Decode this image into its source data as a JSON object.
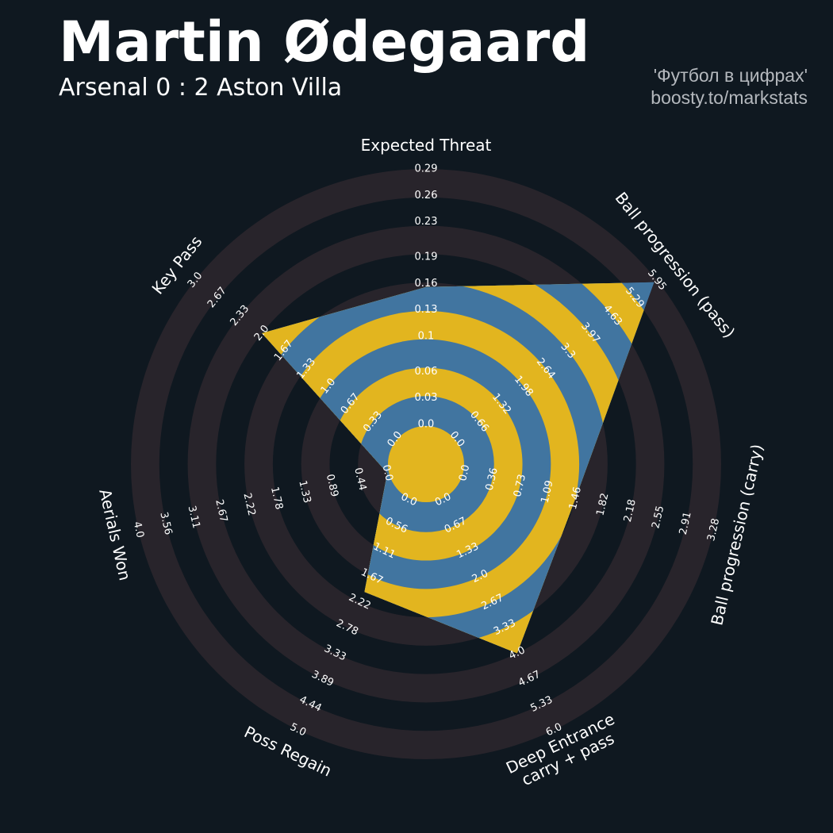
{
  "chart_data": {
    "type": "radar",
    "title": "Martin Ødegaard",
    "subtitle": "Arsenal 0 : 2 Aston Villa",
    "credits": [
      "'Футбол в цифрах'",
      "boosty.to/markstats"
    ],
    "params": [
      "Expected Threat",
      "Ball progression (pass)",
      "Ball progression (carry)",
      "Deep Entrance\ncarry + pass",
      "Poss Regain",
      "Aerials Won",
      "Key Pass"
    ],
    "values": [
      0.156,
      5.87,
      1.46,
      4,
      2,
      0,
      2
    ],
    "ranges": [
      [
        0,
        0.29
      ],
      [
        0,
        5.95
      ],
      [
        0,
        3.28
      ],
      [
        0,
        6
      ],
      [
        0,
        5
      ],
      [
        0,
        4
      ],
      [
        0,
        3
      ]
    ],
    "ticks": [
      [
        {
          "value": 0,
          "label": "0.0"
        },
        0.03,
        0.06,
        0.1,
        0.13,
        0.16,
        0.19,
        0.23,
        0.26,
        0.29
      ],
      [
        {
          "value": 0,
          "label": "0.0"
        },
        0.66,
        1.32,
        1.98,
        2.64,
        3.3,
        3.97,
        4.63,
        5.29,
        5.95
      ],
      [
        {
          "value": 0,
          "label": "0.0"
        },
        0.36,
        0.73,
        1.09,
        1.46,
        1.82,
        2.18,
        2.55,
        2.91,
        3.28
      ],
      [
        {
          "value": 0,
          "label": "0.0"
        },
        0.67,
        1.33,
        {
          "value": 2,
          "label": "2.0"
        },
        2.67,
        3.33,
        {
          "value": 4,
          "label": "4.0"
        },
        4.67,
        5.33,
        {
          "value": 6,
          "label": "6.0"
        }
      ],
      [
        {
          "value": 0,
          "label": "0.0"
        },
        0.56,
        1.11,
        1.67,
        2.22,
        2.78,
        3.33,
        3.89,
        4.44,
        {
          "value": 5,
          "label": "5.0"
        }
      ],
      [
        {
          "value": 0,
          "label": "0.0"
        },
        0.44,
        0.89,
        1.33,
        1.78,
        2.22,
        2.67,
        3.11,
        3.56,
        {
          "value": 4,
          "label": "4.0"
        }
      ],
      [
        {
          "value": 0,
          "label": "0.0"
        },
        0.33,
        0.67,
        {
          "value": 1,
          "label": "1.0"
        },
        1.33,
        1.67,
        {
          "value": 2,
          "label": "2.0"
        },
        2.33,
        2.67,
        {
          "value": 3,
          "label": "3.0"
        }
      ]
    ],
    "colors": {
      "fill": "#4175a0",
      "alt": "#e2b51f",
      "rings": "#28242b",
      "background": "#0f1820"
    }
  }
}
